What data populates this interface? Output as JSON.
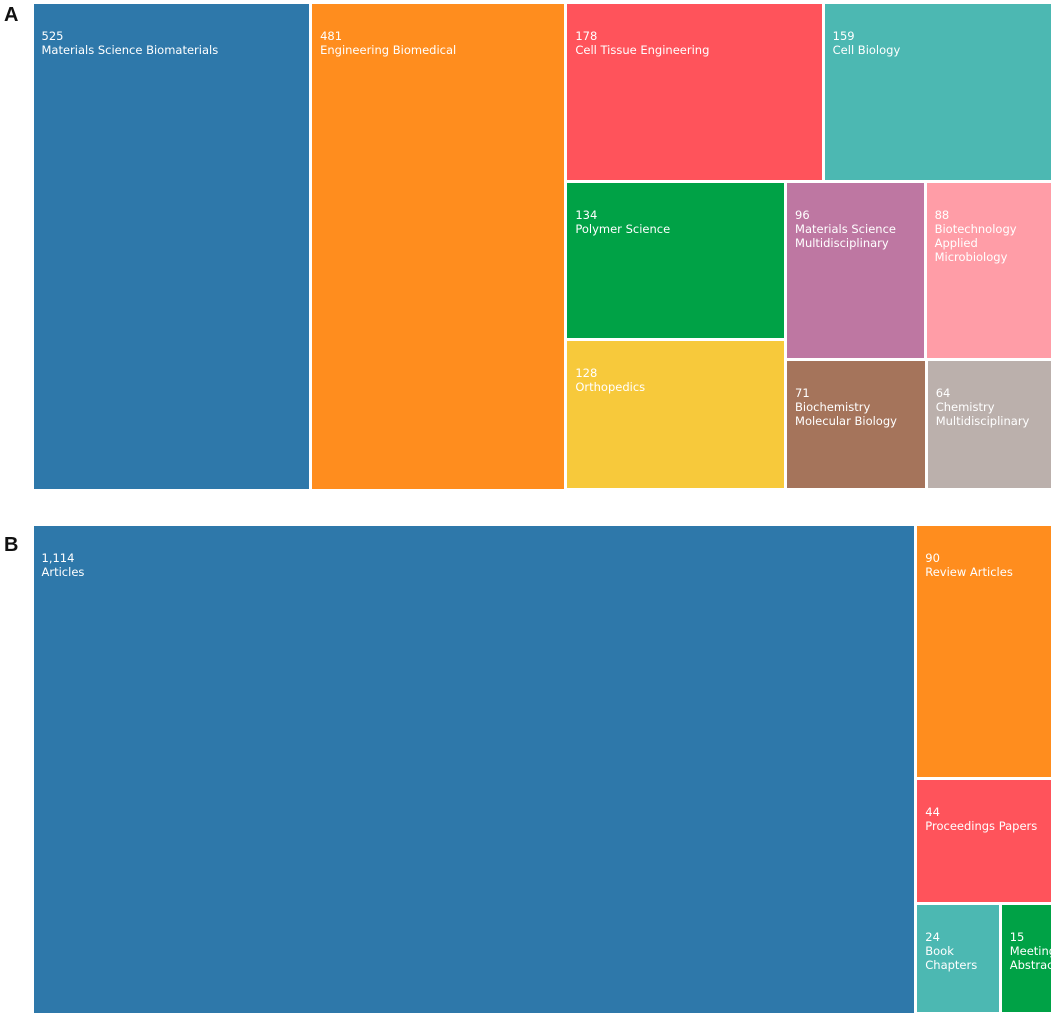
{
  "chart_data": [
    {
      "type": "treemap",
      "title": "A",
      "categories": [
        "Materials Science Biomaterials",
        "Engineering Biomedical",
        "Cell Tissue Engineering",
        "Cell Biology",
        "Polymer Science",
        "Orthopedics",
        "Materials Science Multidisciplinary",
        "Biotechnology Applied Microbiology",
        "Biochemistry Molecular Biology",
        "Chemistry Multidisciplinary"
      ],
      "values": [
        525,
        481,
        178,
        159,
        134,
        128,
        96,
        88,
        71,
        64
      ],
      "colors": [
        "#2e78aa",
        "#ff8d1e",
        "#ff535b",
        "#4cb8b2",
        "#00a246",
        "#f7c93b",
        "#be77a2",
        "#ff9da7",
        "#a5745b",
        "#bbb0ac"
      ]
    },
    {
      "type": "treemap",
      "title": "B",
      "categories": [
        "Articles",
        "Review Articles",
        "Proceedings Papers",
        "Book Chapters",
        "Meeting Abstracts"
      ],
      "values": [
        1114,
        90,
        44,
        24,
        15
      ],
      "value_labels": [
        "1,114",
        "90",
        "44",
        "24",
        "15"
      ],
      "colors": [
        "#2e78aa",
        "#ff8d1e",
        "#ff535b",
        "#4cb8b2",
        "#00a246"
      ]
    }
  ]
}
